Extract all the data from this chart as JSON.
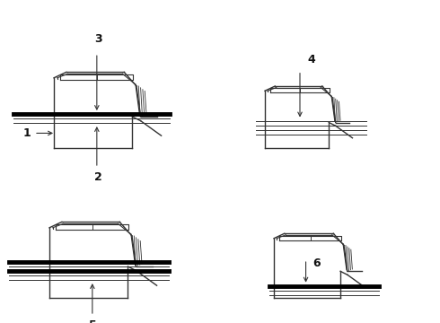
{
  "bg_color": "#ffffff",
  "line_color": "#333333",
  "thick_line_color": "#000000",
  "label_color": "#111111",
  "label_fontsize": 9,
  "label_fontweight": "bold"
}
